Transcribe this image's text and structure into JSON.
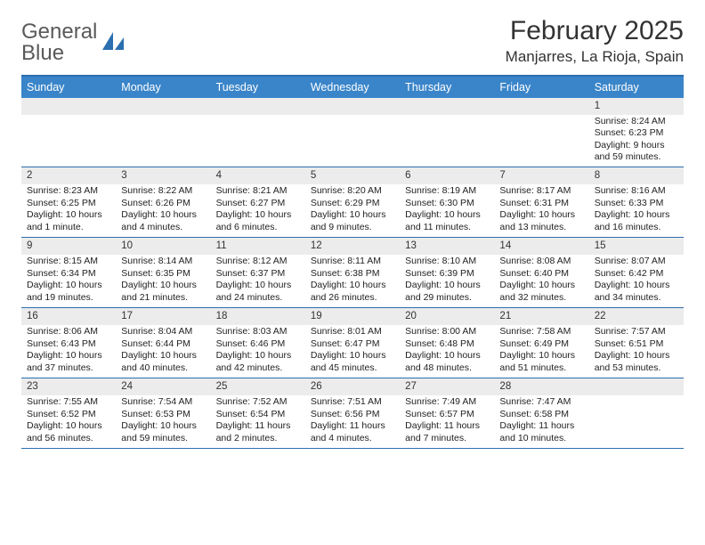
{
  "brand": {
    "line1": "General",
    "line2": "Blue"
  },
  "title": "February 2025",
  "location": "Manjarres, La Rioja, Spain",
  "colors": {
    "header_bg": "#3a85c9",
    "border": "#2b6fb0",
    "daynum_bg": "#ececec",
    "text": "#333333",
    "background": "#ffffff"
  },
  "day_names": [
    "Sunday",
    "Monday",
    "Tuesday",
    "Wednesday",
    "Thursday",
    "Friday",
    "Saturday"
  ],
  "weeks": [
    [
      null,
      null,
      null,
      null,
      null,
      null,
      {
        "n": "1",
        "sr": "8:24 AM",
        "ss": "6:23 PM",
        "dl": "9 hours and 59 minutes."
      }
    ],
    [
      {
        "n": "2",
        "sr": "8:23 AM",
        "ss": "6:25 PM",
        "dl": "10 hours and 1 minute."
      },
      {
        "n": "3",
        "sr": "8:22 AM",
        "ss": "6:26 PM",
        "dl": "10 hours and 4 minutes."
      },
      {
        "n": "4",
        "sr": "8:21 AM",
        "ss": "6:27 PM",
        "dl": "10 hours and 6 minutes."
      },
      {
        "n": "5",
        "sr": "8:20 AM",
        "ss": "6:29 PM",
        "dl": "10 hours and 9 minutes."
      },
      {
        "n": "6",
        "sr": "8:19 AM",
        "ss": "6:30 PM",
        "dl": "10 hours and 11 minutes."
      },
      {
        "n": "7",
        "sr": "8:17 AM",
        "ss": "6:31 PM",
        "dl": "10 hours and 13 minutes."
      },
      {
        "n": "8",
        "sr": "8:16 AM",
        "ss": "6:33 PM",
        "dl": "10 hours and 16 minutes."
      }
    ],
    [
      {
        "n": "9",
        "sr": "8:15 AM",
        "ss": "6:34 PM",
        "dl": "10 hours and 19 minutes."
      },
      {
        "n": "10",
        "sr": "8:14 AM",
        "ss": "6:35 PM",
        "dl": "10 hours and 21 minutes."
      },
      {
        "n": "11",
        "sr": "8:12 AM",
        "ss": "6:37 PM",
        "dl": "10 hours and 24 minutes."
      },
      {
        "n": "12",
        "sr": "8:11 AM",
        "ss": "6:38 PM",
        "dl": "10 hours and 26 minutes."
      },
      {
        "n": "13",
        "sr": "8:10 AM",
        "ss": "6:39 PM",
        "dl": "10 hours and 29 minutes."
      },
      {
        "n": "14",
        "sr": "8:08 AM",
        "ss": "6:40 PM",
        "dl": "10 hours and 32 minutes."
      },
      {
        "n": "15",
        "sr": "8:07 AM",
        "ss": "6:42 PM",
        "dl": "10 hours and 34 minutes."
      }
    ],
    [
      {
        "n": "16",
        "sr": "8:06 AM",
        "ss": "6:43 PM",
        "dl": "10 hours and 37 minutes."
      },
      {
        "n": "17",
        "sr": "8:04 AM",
        "ss": "6:44 PM",
        "dl": "10 hours and 40 minutes."
      },
      {
        "n": "18",
        "sr": "8:03 AM",
        "ss": "6:46 PM",
        "dl": "10 hours and 42 minutes."
      },
      {
        "n": "19",
        "sr": "8:01 AM",
        "ss": "6:47 PM",
        "dl": "10 hours and 45 minutes."
      },
      {
        "n": "20",
        "sr": "8:00 AM",
        "ss": "6:48 PM",
        "dl": "10 hours and 48 minutes."
      },
      {
        "n": "21",
        "sr": "7:58 AM",
        "ss": "6:49 PM",
        "dl": "10 hours and 51 minutes."
      },
      {
        "n": "22",
        "sr": "7:57 AM",
        "ss": "6:51 PM",
        "dl": "10 hours and 53 minutes."
      }
    ],
    [
      {
        "n": "23",
        "sr": "7:55 AM",
        "ss": "6:52 PM",
        "dl": "10 hours and 56 minutes."
      },
      {
        "n": "24",
        "sr": "7:54 AM",
        "ss": "6:53 PM",
        "dl": "10 hours and 59 minutes."
      },
      {
        "n": "25",
        "sr": "7:52 AM",
        "ss": "6:54 PM",
        "dl": "11 hours and 2 minutes."
      },
      {
        "n": "26",
        "sr": "7:51 AM",
        "ss": "6:56 PM",
        "dl": "11 hours and 4 minutes."
      },
      {
        "n": "27",
        "sr": "7:49 AM",
        "ss": "6:57 PM",
        "dl": "11 hours and 7 minutes."
      },
      {
        "n": "28",
        "sr": "7:47 AM",
        "ss": "6:58 PM",
        "dl": "11 hours and 10 minutes."
      },
      null
    ]
  ],
  "labels": {
    "sunrise": "Sunrise:",
    "sunset": "Sunset:",
    "daylight": "Daylight:"
  }
}
